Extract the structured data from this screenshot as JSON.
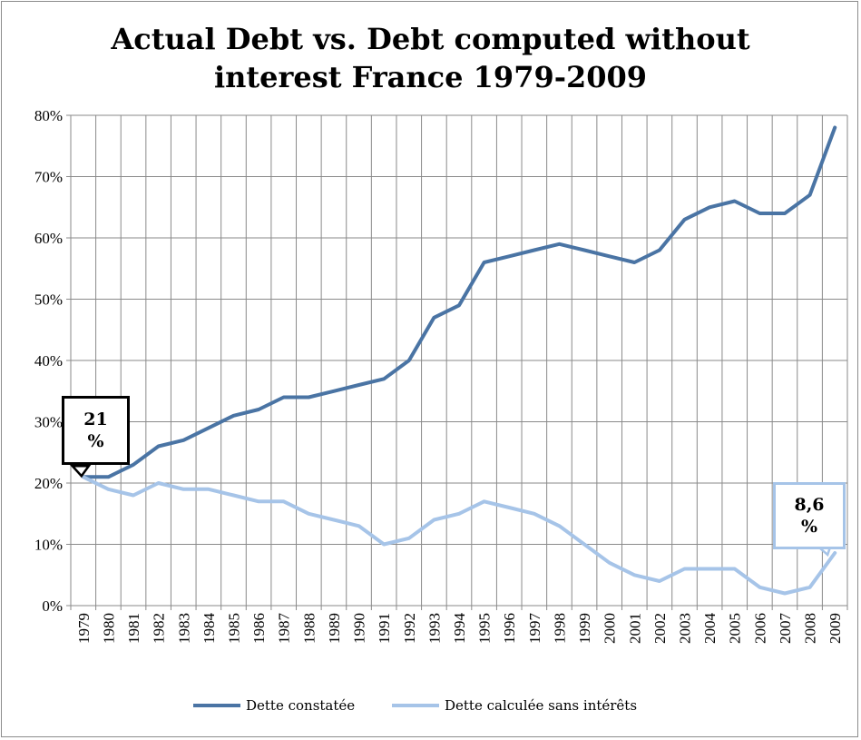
{
  "chart_data": {
    "type": "line",
    "title_lines": [
      "Actual Debt vs. Debt computed without",
      "interest  France 1979-2009"
    ],
    "x": [
      1979,
      1980,
      1981,
      1982,
      1983,
      1984,
      1985,
      1986,
      1987,
      1988,
      1989,
      1990,
      1991,
      1992,
      1993,
      1994,
      1995,
      1996,
      1997,
      1998,
      1999,
      2000,
      2001,
      2002,
      2003,
      2004,
      2005,
      2006,
      2007,
      2008,
      2009
    ],
    "x_labels": [
      "1979",
      "1980",
      "1981",
      "1982",
      "1983",
      "1984",
      "1985",
      "1986",
      "1987",
      "1988",
      "1989",
      "1990",
      "1991",
      "1992",
      "1993",
      "1994",
      "1995",
      "1996",
      "1997",
      "1998",
      "1999",
      "2000",
      "2001",
      "2002",
      "2003",
      "2004",
      "2005",
      "2006",
      "2007",
      "2008",
      "2009"
    ],
    "y_ticks": [
      "0%",
      "10%",
      "20%",
      "30%",
      "40%",
      "50%",
      "60%",
      "70%",
      "80%"
    ],
    "ylim": [
      0,
      80
    ],
    "grid": true,
    "legend_position": "bottom",
    "series": [
      {
        "name": "Dette constatée",
        "color": "#4a74a4",
        "values": [
          21,
          21,
          23,
          26,
          27,
          29,
          31,
          32,
          34,
          34,
          35,
          36,
          37,
          40,
          47,
          49,
          56,
          57,
          58,
          59,
          58,
          57,
          56,
          58,
          63,
          65,
          66,
          64,
          64,
          67,
          78
        ]
      },
      {
        "name": "Dette calculée sans intérêts",
        "color": "#a6c4e8",
        "values": [
          21,
          19,
          18,
          20,
          19,
          19,
          18,
          17,
          17,
          15,
          14,
          13,
          10,
          11,
          14,
          15,
          17,
          16,
          15,
          13,
          10,
          7,
          5,
          4,
          6,
          6,
          6,
          3,
          2,
          3,
          8.6
        ]
      }
    ],
    "annotations": [
      {
        "text_line1": "21",
        "text_line2": "%",
        "border_color": "#000000"
      },
      {
        "text_line1": "8,6",
        "text_line2": "%",
        "border_color": "#a6c4e8"
      }
    ]
  }
}
